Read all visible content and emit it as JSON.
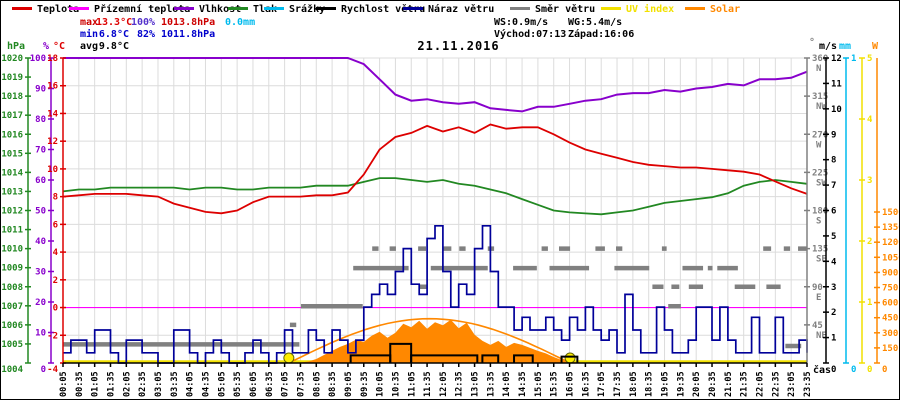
{
  "title": "21.11.2016",
  "palette": {
    "temperature": "#dd0000",
    "ground_temperature": "#ff00ff",
    "humidity": "#8800cc",
    "pressure": "#228822",
    "precipitation": "#00bbee",
    "wind_speed": "#000000",
    "wind_gust": "#000099",
    "wind_direction": "#808080",
    "uv_index": "#f2e100",
    "solar": "#ff8800",
    "grid": "#dcdcdc",
    "stat_max": "#cc0000",
    "stat_min": "#0000cc",
    "stat_avg": "#000000",
    "stat_humidity_max": "#5533cc",
    "sun_marker": "#ffee00"
  },
  "legend": [
    {
      "label": "Teplota",
      "color": "#dd0000",
      "label_color": "#000000"
    },
    {
      "label": "Přízemní teplota",
      "color": "#ff00ff",
      "label_color": "#000000"
    },
    {
      "label": "Vlhkost",
      "color": "#8800cc",
      "label_color": "#000000"
    },
    {
      "label": "Tlak",
      "color": "#228822",
      "label_color": "#000000"
    },
    {
      "label": "Srážky",
      "color": "#00bbee",
      "label_color": "#000000"
    },
    {
      "label": "Rychlost větru",
      "color": "#000000",
      "label_color": "#000000"
    },
    {
      "label": "Náraz větru",
      "color": "#000099",
      "label_color": "#000000"
    },
    {
      "label": "Směr větru",
      "color": "#808080",
      "label_color": "#000000"
    },
    {
      "label": "UV index",
      "color": "#f2e100",
      "label_color": "#f2e100"
    },
    {
      "label": "Solar",
      "color": "#ff8800",
      "label_color": "#ff8800"
    }
  ],
  "stats": {
    "max": {
      "label": "max",
      "temp": "13.3°C",
      "humidity": "100%",
      "pressure": "1013.8hPa",
      "precip": "0.0mm"
    },
    "min": {
      "label": "min",
      "temp": "6.8°C",
      "humidity": "82%",
      "pressure": "1011.8hPa"
    },
    "avg": {
      "label": "avg",
      "temp": "9.8°C"
    },
    "wind": {
      "ws": "WS:0.9m/s",
      "wg": "WG:5.4m/s"
    },
    "sun": {
      "sunrise": "Východ:07:13",
      "sunset": "Západ:16:06"
    }
  },
  "chart_data": {
    "type": "line",
    "title": "21.11.2016",
    "x_axis": {
      "label": "čas",
      "tick_labels": [
        "00:05",
        "00:35",
        "01:05",
        "01:35",
        "02:05",
        "02:35",
        "03:05",
        "03:35",
        "04:05",
        "04:35",
        "05:05",
        "05:35",
        "06:05",
        "06:35",
        "07:05",
        "07:35",
        "08:05",
        "08:35",
        "09:05",
        "09:35",
        "10:05",
        "10:35",
        "11:05",
        "11:35",
        "12:05",
        "12:35",
        "13:05",
        "13:35",
        "14:05",
        "14:35",
        "15:05",
        "15:35",
        "16:05",
        "16:35",
        "17:05",
        "17:35",
        "18:05",
        "18:35",
        "19:05",
        "19:35",
        "20:05",
        "20:35",
        "21:05",
        "21:35",
        "22:05",
        "22:35",
        "23:05",
        "23:35"
      ]
    },
    "axes": {
      "hpa": {
        "unit": "hPa",
        "min": 1004,
        "max": 1020,
        "ticks": [
          1004,
          1005,
          1006,
          1007,
          1008,
          1009,
          1010,
          1011,
          1012,
          1013,
          1014,
          1015,
          1016,
          1017,
          1018,
          1019,
          1020
        ]
      },
      "percent": {
        "unit": "%",
        "min": 0,
        "max": 100,
        "ticks": [
          0,
          10,
          20,
          30,
          40,
          50,
          60,
          70,
          80,
          90,
          100
        ]
      },
      "celsius": {
        "unit": "°C",
        "min": -4,
        "max": 18,
        "ticks": [
          -4,
          -2,
          0,
          2,
          4,
          6,
          8,
          10,
          12,
          14,
          16,
          18
        ]
      },
      "direction": {
        "unit": "°",
        "min": 0,
        "max": 360,
        "ticks": [
          [
            360,
            "N"
          ],
          [
            315,
            "NW"
          ],
          [
            270,
            "W"
          ],
          [
            225,
            "SW"
          ],
          [
            180,
            "S"
          ],
          [
            135,
            "SE"
          ],
          [
            90,
            "E"
          ],
          [
            45,
            "NE"
          ]
        ]
      },
      "ms": {
        "unit": "m/s",
        "min": 0,
        "max": 12,
        "ticks": [
          0,
          1,
          2,
          3,
          4,
          5,
          6,
          7,
          8,
          9,
          10,
          11,
          12
        ]
      },
      "mm": {
        "unit": "mm",
        "min": 0,
        "max": 1,
        "ticks": [
          0,
          1
        ]
      },
      "uv": {
        "unit": "",
        "min": 0,
        "max": 5,
        "ticks": [
          0,
          1,
          2,
          3,
          4,
          5
        ]
      },
      "solar": {
        "unit": "W",
        "min": 0,
        "max": 3030,
        "ticks": [
          0,
          150,
          300,
          450,
          600,
          750,
          900,
          1050,
          1200,
          1350,
          1500
        ]
      }
    },
    "sampling": {
      "t0": 0.0833,
      "step_h": 0.5
    },
    "series": {
      "temperature": {
        "name": "Teplota",
        "axis": "celsius",
        "color": "#dd0000",
        "values": [
          8.0,
          8.1,
          8.2,
          8.2,
          8.2,
          8.1,
          8.0,
          7.5,
          7.2,
          6.9,
          6.8,
          7.0,
          7.6,
          8.0,
          8.0,
          8.0,
          8.1,
          8.1,
          8.3,
          9.6,
          11.4,
          12.3,
          12.6,
          13.1,
          12.7,
          13.0,
          12.6,
          13.2,
          12.9,
          13.0,
          13.0,
          12.5,
          11.9,
          11.4,
          11.1,
          10.8,
          10.5,
          10.3,
          10.2,
          10.1,
          10.1,
          10.0,
          9.9,
          9.8,
          9.6,
          9.1,
          8.6,
          8.2
        ]
      },
      "ground_temperature": {
        "name": "Přízemní teplota",
        "axis": "celsius",
        "color": "#ff00ff",
        "constant": 0
      },
      "humidity": {
        "name": "Vlhkost",
        "axis": "percent",
        "color": "#8800cc",
        "values": [
          100,
          100,
          100,
          100,
          100,
          100,
          100,
          100,
          100,
          100,
          100,
          100,
          100,
          100,
          100,
          100,
          100,
          100,
          100,
          98,
          93,
          88,
          86,
          86.5,
          85.5,
          85,
          85.5,
          83.5,
          83,
          82.5,
          84,
          84,
          85,
          86,
          86.5,
          88,
          88.5,
          88.5,
          89.5,
          89,
          90,
          90.5,
          91.5,
          91,
          93,
          93,
          93.5,
          95.5
        ]
      },
      "pressure": {
        "name": "Tlak",
        "axis": "hpa",
        "color": "#228822",
        "values": [
          1013.0,
          1013.1,
          1013.1,
          1013.2,
          1013.2,
          1013.2,
          1013.2,
          1013.2,
          1013.1,
          1013.2,
          1013.2,
          1013.1,
          1013.1,
          1013.2,
          1013.2,
          1013.2,
          1013.3,
          1013.3,
          1013.3,
          1013.5,
          1013.7,
          1013.7,
          1013.6,
          1013.5,
          1013.6,
          1013.4,
          1013.3,
          1013.1,
          1012.9,
          1012.6,
          1012.3,
          1012.0,
          1011.9,
          1011.85,
          1011.8,
          1011.9,
          1012.0,
          1012.2,
          1012.4,
          1012.5,
          1012.6,
          1012.7,
          1012.9,
          1013.3,
          1013.5,
          1013.6,
          1013.5,
          1013.4
        ]
      },
      "precipitation": {
        "name": "Srážky",
        "axis": "mm",
        "color": "#00bbee",
        "constant": 0
      },
      "wind_speed": {
        "name": "Rychlost větru",
        "axis": "ms",
        "color": "#000000",
        "segments": [
          [
            9.17,
            10.42,
            0.3
          ],
          [
            10.42,
            11.08,
            0.75
          ],
          [
            11.08,
            13.17,
            0.3
          ],
          [
            13.33,
            13.83,
            0.3
          ],
          [
            14.33,
            14.92,
            0.3
          ],
          [
            15.83,
            16.33,
            0.25
          ]
        ]
      },
      "wind_gust": {
        "name": "Náraz větru",
        "axis": "ms",
        "color": "#000099",
        "t0": 0.0833,
        "step_h": 0.25,
        "values": [
          0.4,
          0.9,
          0.9,
          0.4,
          1.3,
          1.3,
          0.4,
          0,
          0.9,
          0.9,
          0.4,
          0.4,
          0,
          0,
          1.3,
          1.3,
          0.4,
          0,
          0.4,
          0.9,
          0.4,
          0,
          0,
          0.4,
          0.9,
          0.4,
          0,
          0.4,
          1.3,
          0.4,
          0.4,
          1.3,
          0.9,
          0.4,
          1.3,
          0.9,
          0.4,
          0.9,
          2.2,
          2.7,
          3.1,
          2.7,
          3.6,
          4.5,
          3.1,
          2.7,
          4.9,
          5.4,
          3.6,
          2.2,
          3.1,
          2.7,
          4.5,
          5.4,
          3.6,
          2.2,
          2.2,
          1.3,
          1.8,
          1.3,
          1.3,
          1.8,
          1.3,
          0.9,
          1.8,
          1.3,
          2.2,
          1.3,
          0.9,
          1.3,
          0.4,
          2.7,
          1.3,
          0.4,
          0.4,
          2.2,
          1.3,
          0.4,
          0.4,
          0.9,
          2.2,
          2.2,
          0.9,
          2.2,
          0.9,
          0.4,
          0.4,
          1.8,
          0.4,
          0.4,
          1.8,
          0.4,
          0.4,
          0.9,
          0.4,
          0.9
        ]
      },
      "wind_direction": {
        "name": "Směr větru",
        "axis": "direction",
        "color": "#808080",
        "dash_segments": [
          [
            0.08,
            7.55,
            22
          ],
          [
            7.25,
            7.45,
            45
          ],
          [
            7.6,
            9.55,
            67
          ],
          [
            9.25,
            11.0,
            112
          ],
          [
            9.85,
            10.05,
            135
          ],
          [
            10.4,
            10.6,
            135
          ],
          [
            11.3,
            11.55,
            135
          ],
          [
            11.35,
            11.6,
            90
          ],
          [
            11.7,
            13.5,
            112
          ],
          [
            12.1,
            12.35,
            135
          ],
          [
            12.6,
            12.8,
            135
          ],
          [
            13.5,
            13.7,
            135
          ],
          [
            14.3,
            15.05,
            112
          ],
          [
            15.2,
            15.4,
            135
          ],
          [
            15.45,
            16.7,
            112
          ],
          [
            15.75,
            16.1,
            135
          ],
          [
            16.9,
            17.2,
            135
          ],
          [
            17.5,
            18.6,
            112
          ],
          [
            17.55,
            17.75,
            135
          ],
          [
            18.7,
            19.05,
            90
          ],
          [
            19.0,
            19.15,
            135
          ],
          [
            19.2,
            19.6,
            67
          ],
          [
            19.3,
            19.55,
            90
          ],
          [
            19.65,
            20.3,
            112
          ],
          [
            19.85,
            20.3,
            90
          ],
          [
            20.45,
            20.6,
            112
          ],
          [
            20.75,
            21.4,
            112
          ],
          [
            21.3,
            21.95,
            90
          ],
          [
            22.2,
            22.45,
            135
          ],
          [
            22.3,
            22.75,
            90
          ],
          [
            22.85,
            23.05,
            135
          ],
          [
            22.9,
            23.4,
            20
          ],
          [
            23.3,
            23.58,
            135
          ]
        ]
      },
      "uv_index": {
        "name": "UV index",
        "axis": "uv",
        "color": "#f2e100",
        "constant": 0
      },
      "solar": {
        "name": "Solar",
        "axis": "solar",
        "color": "#ff8800",
        "area_t0": 7.583,
        "area_step_h": 0.25,
        "area_values": [
          5,
          15,
          40,
          80,
          120,
          160,
          190,
          230,
          210,
          270,
          310,
          250,
          300,
          390,
          355,
          420,
          340,
          405,
          375,
          430,
          345,
          400,
          280,
          220,
          180,
          220,
          160,
          200,
          180,
          150,
          120,
          95,
          60,
          30,
          15,
          5,
          0
        ],
        "clear_sky_arc": {
          "start_hour": 7.217,
          "end_hour": 16.1,
          "peak_w": 440
        }
      }
    },
    "sun_markers": {
      "sunrise_hour": 7.217,
      "sunset_hour": 16.1
    }
  }
}
